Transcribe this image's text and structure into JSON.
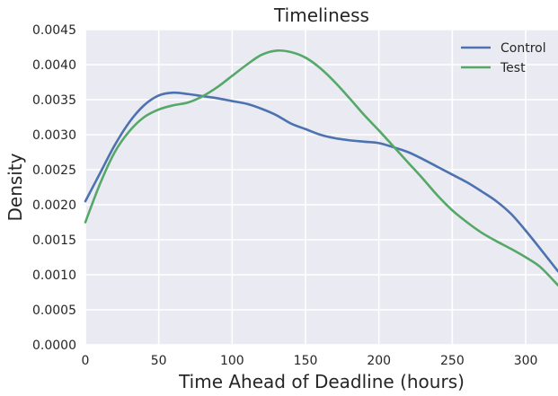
{
  "chart_data": {
    "type": "line",
    "title": "Timeliness",
    "xlabel": "Time Ahead of Deadline (hours)",
    "ylabel": "Density",
    "xlim": [
      0,
      322
    ],
    "ylim": [
      0,
      0.0045
    ],
    "xticks": [
      0,
      50,
      100,
      150,
      200,
      250,
      300
    ],
    "xtick_labels": [
      "0",
      "50",
      "100",
      "150",
      "200",
      "250",
      "300"
    ],
    "yticks": [
      0,
      0.0005,
      0.001,
      0.0015,
      0.002,
      0.0025,
      0.003,
      0.0035,
      0.004,
      0.0045
    ],
    "ytick_labels": [
      "0.0000",
      "0.0005",
      "0.0010",
      "0.0015",
      "0.0020",
      "0.0025",
      "0.0030",
      "0.0035",
      "0.0040",
      "0.0045"
    ],
    "grid": true,
    "legend_position": "top-right",
    "background_color": "#EAEAF2",
    "series": [
      {
        "name": "Control",
        "color": "#4C72B0",
        "x": [
          0,
          10,
          20,
          30,
          40,
          50,
          60,
          70,
          80,
          90,
          100,
          110,
          120,
          130,
          140,
          150,
          160,
          170,
          180,
          190,
          200,
          210,
          220,
          230,
          240,
          250,
          260,
          270,
          280,
          290,
          300,
          310,
          322
        ],
        "y": [
          0.00205,
          0.00245,
          0.00285,
          0.00318,
          0.00342,
          0.00356,
          0.0036,
          0.00358,
          0.00355,
          0.00352,
          0.00348,
          0.00344,
          0.00337,
          0.00328,
          0.00316,
          0.00308,
          0.003,
          0.00295,
          0.00292,
          0.0029,
          0.00288,
          0.00282,
          0.00275,
          0.00265,
          0.00254,
          0.00243,
          0.00232,
          0.00219,
          0.00205,
          0.00187,
          0.00163,
          0.00137,
          0.00105
        ]
      },
      {
        "name": "Test",
        "color": "#55A868",
        "x": [
          0,
          10,
          20,
          30,
          40,
          50,
          60,
          70,
          80,
          90,
          100,
          110,
          120,
          130,
          140,
          150,
          160,
          170,
          180,
          190,
          200,
          210,
          220,
          230,
          240,
          250,
          260,
          270,
          280,
          290,
          300,
          310,
          322
        ],
        "y": [
          0.00175,
          0.0023,
          0.00275,
          0.00305,
          0.00325,
          0.00336,
          0.00342,
          0.00346,
          0.00355,
          0.00368,
          0.00384,
          0.004,
          0.00414,
          0.0042,
          0.00418,
          0.0041,
          0.00395,
          0.00375,
          0.00352,
          0.00328,
          0.00306,
          0.00283,
          0.0026,
          0.00237,
          0.00213,
          0.00192,
          0.00175,
          0.0016,
          0.00148,
          0.00137,
          0.00125,
          0.00111,
          0.00085
        ]
      }
    ]
  }
}
